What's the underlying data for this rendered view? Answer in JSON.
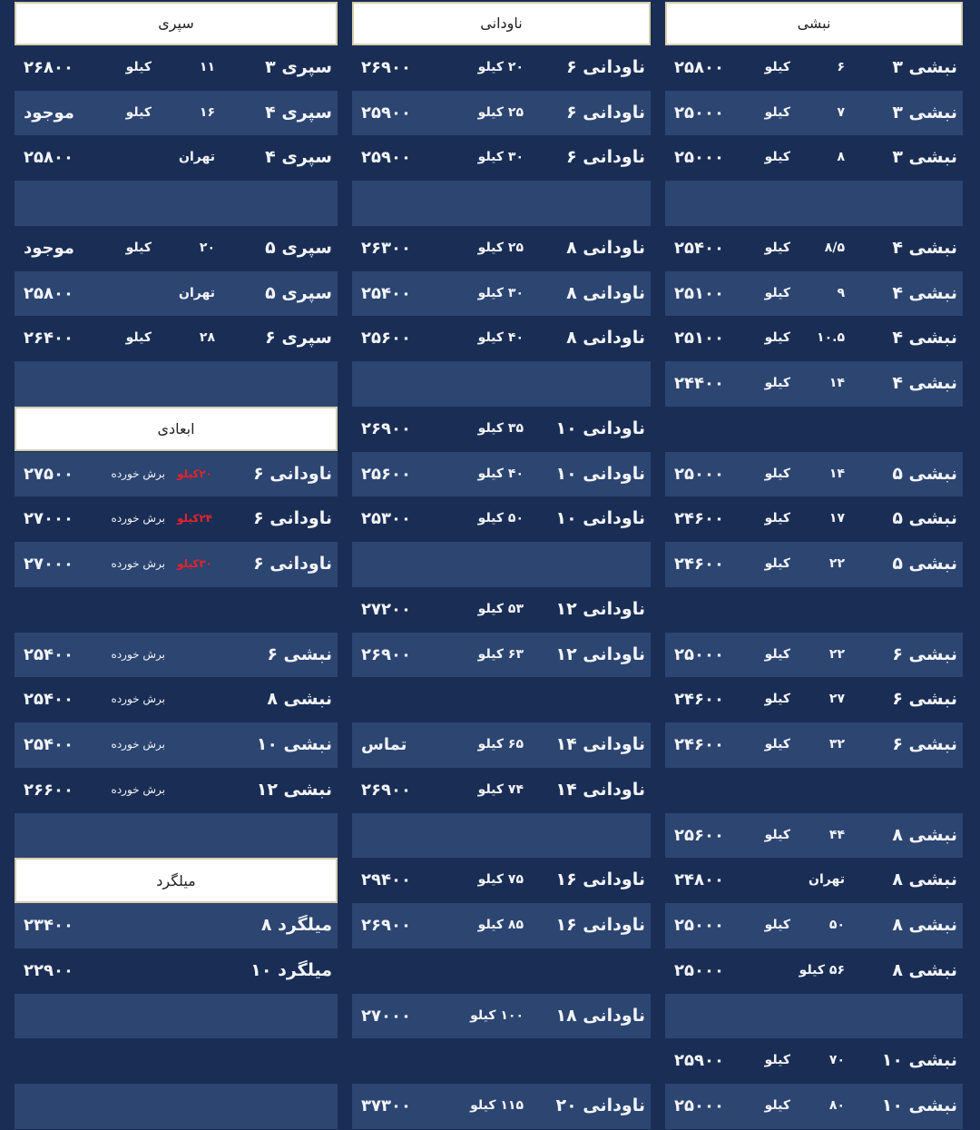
{
  "columns": [
    {
      "key": "right",
      "rows": [
        {
          "type": "header",
          "title": "نبشی"
        },
        {
          "type": "item",
          "name": "نبشی ۳",
          "size": "۶",
          "unit": "کیلو",
          "price": "۲۵۸۰۰"
        },
        {
          "type": "item",
          "name": "نبشی ۳",
          "size": "۷",
          "unit": "کیلو",
          "price": "۲۵۰۰۰"
        },
        {
          "type": "item",
          "name": "نبشی ۳",
          "size": "۸",
          "unit": "کیلو",
          "price": "۲۵۰۰۰"
        },
        {
          "type": "empty"
        },
        {
          "type": "item",
          "name": "نبشی ۴",
          "size": "۸/۵",
          "unit": "کیلو",
          "price": "۲۵۴۰۰"
        },
        {
          "type": "item",
          "name": "نبشی ۴",
          "size": "۹",
          "unit": "کیلو",
          "price": "۲۵۱۰۰"
        },
        {
          "type": "item",
          "name": "نبشی ۴",
          "size": "۱۰.۵",
          "unit": "کیلو",
          "price": "۲۵۱۰۰"
        },
        {
          "type": "item",
          "name": "نبشی ۴",
          "size": "۱۴",
          "unit": "کیلو",
          "price": "۲۴۴۰۰"
        },
        {
          "type": "empty"
        },
        {
          "type": "item",
          "name": "نبشی ۵",
          "size": "۱۴",
          "unit": "کیلو",
          "price": "۲۵۰۰۰"
        },
        {
          "type": "item",
          "name": "نبشی ۵",
          "size": "۱۷",
          "unit": "کیلو",
          "price": "۲۴۶۰۰"
        },
        {
          "type": "item",
          "name": "نبشی ۵",
          "size": "۲۲",
          "unit": "کیلو",
          "price": "۲۴۶۰۰"
        },
        {
          "type": "empty"
        },
        {
          "type": "item",
          "name": "نبشی ۶",
          "size": "۲۲",
          "unit": "کیلو",
          "price": "۲۵۰۰۰"
        },
        {
          "type": "item",
          "name": "نبشی ۶",
          "size": "۲۷",
          "unit": "کیلو",
          "price": "۲۴۶۰۰"
        },
        {
          "type": "item",
          "name": "نبشی ۶",
          "size": "۳۲",
          "unit": "کیلو",
          "price": "۲۴۶۰۰"
        },
        {
          "type": "empty"
        },
        {
          "type": "item",
          "name": "نبشی ۸",
          "size": "۴۴",
          "unit": "کیلو",
          "price": "۲۵۶۰۰"
        },
        {
          "type": "item",
          "name": "نبشی ۸",
          "size": "تهران",
          "price": "۲۴۸۰۰"
        },
        {
          "type": "item",
          "name": "نبشی ۸",
          "size": "۵۰",
          "unit": "کیلو",
          "price": "۲۵۰۰۰"
        },
        {
          "type": "item",
          "name": "نبشی ۸",
          "size": "۵۶ کیلو",
          "price": "۲۵۰۰۰"
        },
        {
          "type": "empty"
        },
        {
          "type": "item",
          "name": "نبشی ۱۰",
          "size": "۷۰",
          "unit": "کیلو",
          "price": "۲۵۹۰۰"
        },
        {
          "type": "item",
          "name": "نبشی ۱۰",
          "size": "۸۰",
          "unit": "کیلو",
          "price": "۲۵۰۰۰"
        }
      ]
    },
    {
      "key": "mid",
      "rows": [
        {
          "type": "header",
          "title": "ناودانی"
        },
        {
          "type": "item",
          "name": "ناودانی ۶",
          "size": "۲۰ کیلو",
          "price": "۲۶۹۰۰"
        },
        {
          "type": "item",
          "name": "ناودانی ۶",
          "size": "۲۵ کیلو",
          "price": "۲۵۹۰۰"
        },
        {
          "type": "item",
          "name": "ناودانی ۶",
          "size": "۳۰ کیلو",
          "price": "۲۵۹۰۰"
        },
        {
          "type": "empty"
        },
        {
          "type": "item",
          "name": "ناودانی ۸",
          "size": "۲۵ کیلو",
          "price": "۲۶۳۰۰"
        },
        {
          "type": "item",
          "name": "ناودانی ۸",
          "size": "۳۰ کیلو",
          "price": "۲۵۴۰۰"
        },
        {
          "type": "item",
          "name": "ناودانی ۸",
          "size": "۴۰ کیلو",
          "price": "۲۵۶۰۰"
        },
        {
          "type": "empty"
        },
        {
          "type": "item",
          "name": "ناودانی ۱۰",
          "size": "۳۵ کیلو",
          "price": "۲۶۹۰۰"
        },
        {
          "type": "item",
          "name": "ناودانی ۱۰",
          "size": "۴۰ کیلو",
          "price": "۲۵۶۰۰"
        },
        {
          "type": "item",
          "name": "ناودانی ۱۰",
          "size": "۵۰ کیلو",
          "price": "۲۵۳۰۰"
        },
        {
          "type": "empty"
        },
        {
          "type": "item",
          "name": "ناودانی ۱۲",
          "size": "۵۳ کیلو",
          "price": "۲۷۲۰۰"
        },
        {
          "type": "item",
          "name": "ناودانی ۱۲",
          "size": "۶۳ کیلو",
          "price": "۲۶۹۰۰"
        },
        {
          "type": "empty"
        },
        {
          "type": "item",
          "name": "ناودانی ۱۴",
          "size": "۶۵ کیلو",
          "price": "تماس"
        },
        {
          "type": "item",
          "name": "ناودانی ۱۴",
          "size": "۷۴ کیلو",
          "price": "۲۶۹۰۰"
        },
        {
          "type": "empty"
        },
        {
          "type": "item",
          "name": "ناودانی ۱۶",
          "size": "۷۵ کیلو",
          "price": "۲۹۴۰۰"
        },
        {
          "type": "item",
          "name": "ناودانی ۱۶",
          "size": "۸۵ کیلو",
          "price": "۲۶۹۰۰"
        },
        {
          "type": "empty"
        },
        {
          "type": "item",
          "name": "ناودانی ۱۸",
          "size": "۱۰۰ کیلو",
          "price": "۲۷۰۰۰"
        },
        {
          "type": "empty"
        },
        {
          "type": "item",
          "name": "ناودانی ۲۰",
          "size": "۱۱۵ کیلو",
          "price": "۳۷۳۰۰"
        }
      ]
    },
    {
      "key": "left",
      "rows": [
        {
          "type": "header",
          "title": "سپری"
        },
        {
          "type": "item",
          "name": "سپری ۳",
          "size": "۱۱",
          "unit": "کیلو",
          "price": "۲۶۸۰۰"
        },
        {
          "type": "item",
          "name": "سپری ۴",
          "size": "۱۶",
          "unit": "کیلو",
          "price": "موجود"
        },
        {
          "type": "item",
          "name": "سپری ۴",
          "size": "تهران",
          "price": "۲۵۸۰۰"
        },
        {
          "type": "empty"
        },
        {
          "type": "item",
          "name": "سپری ۵",
          "size": "۲۰",
          "unit": "کیلو",
          "price": "موجود"
        },
        {
          "type": "item",
          "name": "سپری ۵",
          "size": "تهران",
          "price": "۲۵۸۰۰"
        },
        {
          "type": "item",
          "name": "سپری ۶",
          "size": "۲۸",
          "unit": "کیلو",
          "price": "۲۶۴۰۰"
        },
        {
          "type": "empty"
        },
        {
          "type": "header",
          "title": "ابعادی"
        },
        {
          "type": "item",
          "name": "ناودانی ۶",
          "red": "۲۰کیلو",
          "note": "برش خورده",
          "price": "۲۷۵۰۰"
        },
        {
          "type": "item",
          "name": "ناودانی ۶",
          "red": "۲۴کیلو",
          "note": "برش خورده",
          "price": "۲۷۰۰۰"
        },
        {
          "type": "item",
          "name": "ناودانی ۶",
          "red": "۳۰کیلو",
          "note": "برش خورده",
          "price": "۲۷۰۰۰"
        },
        {
          "type": "empty"
        },
        {
          "type": "item",
          "name": "نبشی ۶",
          "note": "برش خورده",
          "price": "۲۵۴۰۰"
        },
        {
          "type": "item",
          "name": "نبشی ۸",
          "note": "برش خورده",
          "price": "۲۵۴۰۰"
        },
        {
          "type": "item",
          "name": "نبشی ۱۰",
          "note": "برش خورده",
          "price": "۲۵۴۰۰"
        },
        {
          "type": "item",
          "name": "نبشی ۱۲",
          "note": "برش خورده",
          "price": "۲۶۶۰۰"
        },
        {
          "type": "empty"
        },
        {
          "type": "header",
          "title": "میلگرد"
        },
        {
          "type": "item",
          "name": "میلگرد ۸",
          "price": "۲۳۴۰۰"
        },
        {
          "type": "item",
          "name": "میلگرد ۱۰",
          "price": "۲۲۹۰۰"
        },
        {
          "type": "empty"
        },
        {
          "type": "empty"
        },
        {
          "type": "empty"
        }
      ]
    }
  ],
  "colors": {
    "background": "#1a2e55",
    "row_light": "#2c4571",
    "header_bg": "#ffffff",
    "highlight": "#e4232b"
  }
}
